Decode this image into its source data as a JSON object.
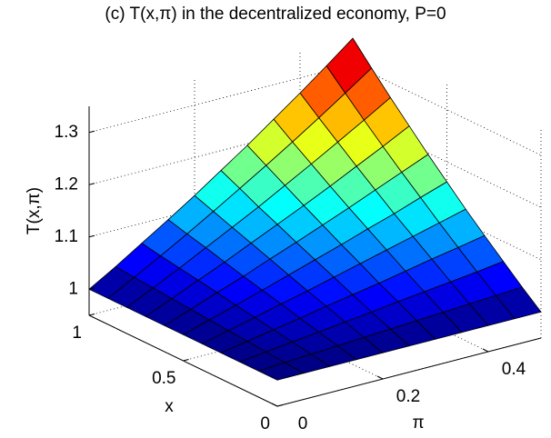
{
  "chart_data": {
    "type": "surface",
    "title": "(c) T(x,π) in the decentralized economy, P=0",
    "xlabel": "x",
    "ylabel": "π",
    "zlabel": "T(x,π)",
    "x": [
      0,
      0.1,
      0.2,
      0.3,
      0.4,
      0.5,
      0.6,
      0.7,
      0.8,
      0.9,
      1
    ],
    "y": [
      0,
      0.05,
      0.1,
      0.15,
      0.2,
      0.25,
      0.3,
      0.35,
      0.4,
      0.45,
      0.5
    ],
    "z": [
      [
        1,
        1,
        1,
        1,
        1,
        1,
        1,
        1,
        1,
        1,
        1
      ],
      [
        1,
        1.003,
        1.006,
        1.009,
        1.012,
        1.015,
        1.018,
        1.021,
        1.024,
        1.027,
        1.03
      ],
      [
        1,
        1.006,
        1.012,
        1.018,
        1.024,
        1.03,
        1.037,
        1.043,
        1.049,
        1.055,
        1.062
      ],
      [
        1,
        1.009,
        1.018,
        1.027,
        1.037,
        1.046,
        1.055,
        1.065,
        1.075,
        1.084,
        1.094
      ],
      [
        1,
        1.012,
        1.024,
        1.037,
        1.049,
        1.062,
        1.075,
        1.088,
        1.101,
        1.114,
        1.127
      ],
      [
        1,
        1.015,
        1.03,
        1.046,
        1.062,
        1.078,
        1.094,
        1.111,
        1.127,
        1.145,
        1.162
      ],
      [
        1,
        1.018,
        1.037,
        1.055,
        1.075,
        1.094,
        1.114,
        1.134,
        1.155,
        1.176,
        1.197
      ],
      [
        1,
        1.021,
        1.043,
        1.065,
        1.088,
        1.111,
        1.134,
        1.158,
        1.183,
        1.208,
        1.234
      ],
      [
        1,
        1.024,
        1.049,
        1.075,
        1.101,
        1.127,
        1.155,
        1.183,
        1.212,
        1.241,
        1.271
      ],
      [
        1,
        1.027,
        1.055,
        1.084,
        1.114,
        1.145,
        1.176,
        1.208,
        1.241,
        1.275,
        1.31
      ],
      [
        1,
        1.03,
        1.062,
        1.094,
        1.127,
        1.162,
        1.197,
        1.234,
        1.271,
        1.31,
        1.35
      ]
    ],
    "xlim": [
      0,
      1
    ],
    "ylim": [
      0,
      0.5
    ],
    "zlim": [
      0.95,
      1.35
    ],
    "xticks": [
      0,
      0.5,
      1
    ],
    "yticks": [
      0,
      0.2,
      0.4
    ],
    "zticks": [
      1,
      1.1,
      1.2,
      1.3
    ],
    "grid": true,
    "colormap": "jet",
    "edgecolor": "#000000"
  }
}
